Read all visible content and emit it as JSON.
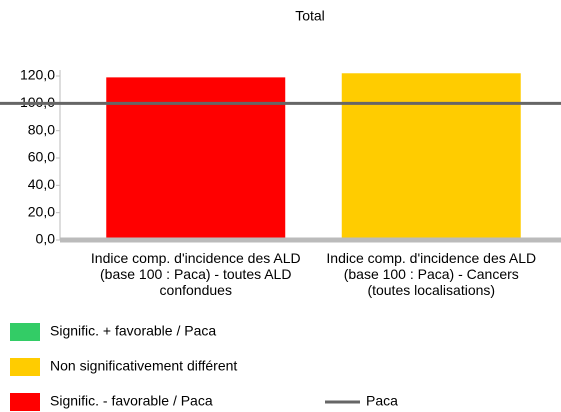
{
  "chart_data": {
    "type": "bar",
    "subtitle": "Total",
    "categories": [
      "Indice comp. d'incidence des ALD (base 100 : Paca) - toutes ALD confondues",
      "Indice comp. d'incidence des ALD (base 100 : Paca) - Cancers (toutes localisations)"
    ],
    "values": [
      119,
      122
    ],
    "colors": [
      "#ff0000",
      "#ffcc00"
    ],
    "ylim": [
      0,
      120
    ],
    "yticks": [
      {
        "value": 0,
        "label": "0,0"
      },
      {
        "value": 20,
        "label": "20,0"
      },
      {
        "value": 40,
        "label": "40,0"
      },
      {
        "value": 60,
        "label": "60,0"
      },
      {
        "value": 80,
        "label": "80,0"
      },
      {
        "value": 100,
        "label": "100,0"
      },
      {
        "value": 120,
        "label": "120,0"
      }
    ],
    "reference_line": {
      "name": "Paca",
      "value": 100,
      "color": "#666666"
    },
    "legend": [
      {
        "name": "Signific. + favorable / Paca",
        "color": "#33cc66"
      },
      {
        "name": "Non significativement différent",
        "color": "#ffcc00"
      },
      {
        "name": "Signific. - favorable / Paca",
        "color": "#ff0000"
      }
    ]
  }
}
